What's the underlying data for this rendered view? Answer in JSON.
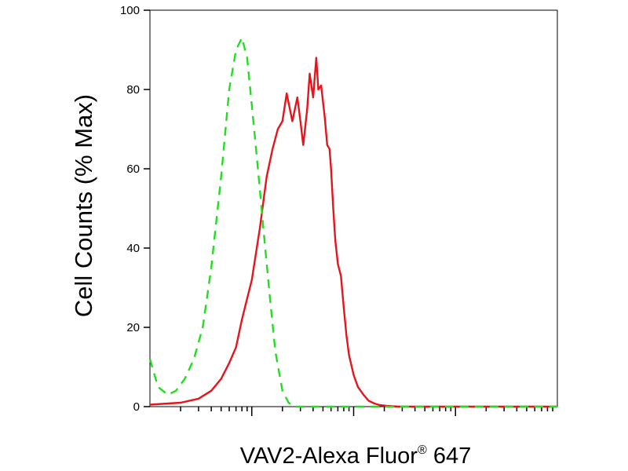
{
  "chart_data": {
    "type": "line",
    "title": "",
    "xlabel": "VAV2-Alexa Fluor",
    "xlabel_superscript": "®",
    "xlabel_suffix": " 647",
    "ylabel": "Cell Counts (% Max)",
    "x_scale": "log",
    "xlim": [
      1,
      10000
    ],
    "ylim": [
      0,
      100
    ],
    "y_ticks": [
      0,
      20,
      40,
      60,
      80,
      100
    ],
    "y_tick_labels": [
      "0",
      "20",
      "40",
      "60",
      "80",
      "100"
    ],
    "x_major_ticks": [
      10,
      100,
      1000
    ],
    "grid": false,
    "legend": "none",
    "series": [
      {
        "style": "solid",
        "color": "#e8141c",
        "x": [
          1,
          2,
          3,
          4,
          5,
          6,
          7,
          8,
          10,
          12,
          14,
          16,
          18,
          20,
          22,
          25,
          28,
          30,
          32,
          35,
          37,
          40,
          43,
          45,
          48,
          52,
          55,
          58,
          60,
          63,
          66,
          70,
          75,
          80,
          85,
          90,
          100,
          110,
          125,
          140,
          160,
          180,
          210,
          240,
          280,
          320,
          400,
          1000,
          10000
        ],
        "y": [
          0.5,
          1,
          2,
          4,
          7,
          11,
          15,
          22,
          32,
          45,
          58,
          65,
          70,
          72,
          79,
          72,
          78,
          72,
          66,
          75,
          84,
          78,
          88,
          80,
          81,
          73,
          66,
          65,
          60,
          50,
          42,
          36,
          33,
          25,
          18,
          13,
          8,
          5,
          3,
          1.5,
          0.8,
          0.4,
          0.2,
          0.1,
          0,
          0,
          0,
          0,
          0
        ]
      },
      {
        "style": "dashed",
        "color": "#22dd22",
        "x": [
          1,
          1.2,
          1.5,
          1.8,
          2.2,
          2.7,
          3.3,
          4,
          5,
          6,
          7,
          8,
          9,
          10,
          11.5,
          13,
          15,
          17,
          20,
          23,
          26,
          30,
          40,
          100,
          1000,
          10000
        ],
        "y": [
          12,
          5,
          3,
          4,
          7,
          12,
          20,
          35,
          58,
          80,
          90,
          93,
          88,
          76,
          60,
          45,
          28,
          14,
          4,
          1,
          0,
          0,
          0,
          0,
          0,
          0
        ]
      }
    ]
  }
}
